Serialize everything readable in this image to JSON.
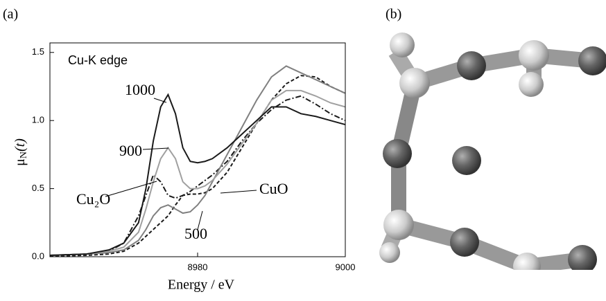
{
  "panel_labels": [
    "(a)",
    "(b)"
  ],
  "chart_data": {
    "type": "line",
    "annotation": "Cu-K edge",
    "xlabel": "Energy / eV",
    "ylabel": {
      "symbol": "μ",
      "subscript": "N",
      "argument": "(t)"
    },
    "xlim": [
      8960,
      9000
    ],
    "xticks": [
      8980,
      9000
    ],
    "ylim": [
      0,
      1.57
    ],
    "yticks": [
      {
        "value": 0,
        "label": "0.0"
      },
      0.5,
      {
        "value": 1,
        "label": "1.0"
      },
      1.5
    ],
    "grid": false,
    "x": [
      8960,
      8965,
      8968,
      8970,
      8972,
      8973,
      8974,
      8975,
      8976,
      8977,
      8978,
      8979,
      8980,
      8981,
      8982,
      8984,
      8986,
      8988,
      8990,
      8992,
      8994,
      8996,
      8998,
      9000
    ],
    "series": [
      {
        "name": "1000",
        "color": "#1a1a1a",
        "dash": "none",
        "values": [
          0.01,
          0.02,
          0.05,
          0.1,
          0.25,
          0.5,
          0.85,
          1.1,
          1.19,
          1.05,
          0.8,
          0.7,
          0.69,
          0.7,
          0.72,
          0.8,
          0.9,
          1.0,
          1.1,
          1.1,
          1.05,
          1.03,
          1.0,
          0.97
        ]
      },
      {
        "name": "900",
        "color": "#a0a0a0",
        "dash": "none",
        "values": [
          0.01,
          0.02,
          0.04,
          0.07,
          0.18,
          0.35,
          0.55,
          0.72,
          0.8,
          0.72,
          0.55,
          0.5,
          0.5,
          0.52,
          0.56,
          0.68,
          0.83,
          0.98,
          1.15,
          1.22,
          1.22,
          1.18,
          1.13,
          1.1
        ]
      },
      {
        "name": "500",
        "color": "#808080",
        "dash": "none",
        "values": [
          0.01,
          0.02,
          0.03,
          0.05,
          0.12,
          0.2,
          0.3,
          0.36,
          0.38,
          0.35,
          0.32,
          0.33,
          0.38,
          0.45,
          0.55,
          0.75,
          0.95,
          1.15,
          1.32,
          1.4,
          1.35,
          1.3,
          1.25,
          1.2
        ]
      },
      {
        "name": "Cu₂O",
        "color": "#1a1a1a",
        "dash": "8,3,2,3",
        "values": [
          0.01,
          0.02,
          0.04,
          0.1,
          0.3,
          0.45,
          0.6,
          0.55,
          0.45,
          0.43,
          0.45,
          0.48,
          0.52,
          0.56,
          0.6,
          0.7,
          0.85,
          0.98,
          1.08,
          1.15,
          1.18,
          1.12,
          1.05,
          1.0
        ]
      },
      {
        "name": "CuO",
        "color": "#1a1a1a",
        "dash": "5,3",
        "values": [
          0.005,
          0.01,
          0.02,
          0.04,
          0.1,
          0.15,
          0.2,
          0.25,
          0.3,
          0.38,
          0.45,
          0.46,
          0.46,
          0.47,
          0.5,
          0.62,
          0.8,
          0.98,
          1.15,
          1.27,
          1.33,
          1.32,
          1.25,
          1.2
        ]
      }
    ]
  }
}
